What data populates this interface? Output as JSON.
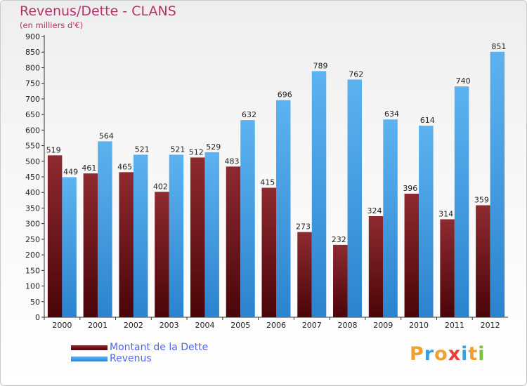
{
  "header": {
    "title": "Revenus/Dette - CLANS",
    "subtitle": "(en milliers d'€)"
  },
  "legend": {
    "items": [
      {
        "label": "Montant de la Dette",
        "color": "#6b0e14"
      },
      {
        "label": "Revenus",
        "color": "#3d9de4"
      }
    ]
  },
  "logo": {
    "text": "Proxiti",
    "letters": [
      {
        "ch": "P",
        "color": "#f0a030"
      },
      {
        "ch": "r",
        "color": "#3aa0e0"
      },
      {
        "ch": "o",
        "color": "#f0a030"
      },
      {
        "ch": "x",
        "color": "#e83b3b"
      },
      {
        "ch": "i",
        "color": "#3aa0e0"
      },
      {
        "ch": "t",
        "color": "#f0a030"
      },
      {
        "ch": "i",
        "color": "#7cc242"
      }
    ]
  },
  "chart_data": {
    "type": "bar",
    "title": "Revenus/Dette - CLANS",
    "subtitle": "(en milliers d'€)",
    "categories": [
      "2000",
      "2001",
      "2002",
      "2003",
      "2004",
      "2005",
      "2006",
      "2007",
      "2008",
      "2009",
      "2010",
      "2011",
      "2012"
    ],
    "series": [
      {
        "name": "Montant de la Dette",
        "color": "#6b0e14",
        "values": [
          519,
          461,
          465,
          402,
          512,
          483,
          415,
          273,
          232,
          324,
          396,
          314,
          359
        ]
      },
      {
        "name": "Revenus",
        "color": "#3d9de4",
        "values": [
          449,
          564,
          521,
          521,
          529,
          632,
          696,
          789,
          762,
          634,
          614,
          740,
          851
        ]
      }
    ],
    "ylim": [
      0,
      900
    ],
    "yticks": [
      0,
      50,
      100,
      150,
      200,
      250,
      300,
      350,
      400,
      450,
      500,
      550,
      600,
      650,
      700,
      750,
      800,
      850,
      900
    ],
    "grid": false,
    "legend_position": "bottom-left"
  }
}
